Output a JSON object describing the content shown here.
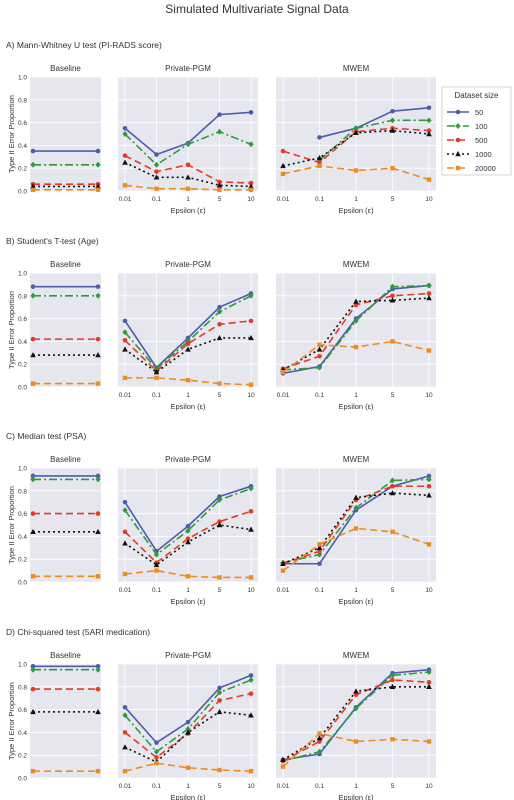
{
  "figure_title": "Simulated Multivariate Signal Data",
  "legend_title": "Dataset size",
  "colors": {
    "bg": "#e6e6ef",
    "grid": "#ffffff",
    "s50": "#4c5dab",
    "s100": "#2e9b3c",
    "s500": "#e53a24",
    "s1000": "#111111",
    "s20000": "#f08c1e"
  },
  "chart_data": {
    "type": "line",
    "shared_y_label": "Type II Error Proportion",
    "shared_x_label": "Epsilon (ε)",
    "ylim": [
      0.0,
      1.0
    ],
    "y_ticks": [
      "0.0",
      "0.2",
      "0.4",
      "0.6",
      "0.8",
      "1.0"
    ],
    "x_ticks": [
      "0.01",
      "0.1",
      "1",
      "5",
      "10"
    ],
    "panel_titles": [
      "Baseline",
      "Private-PGM",
      "MWEM"
    ],
    "series_names": [
      "50",
      "100",
      "500",
      "1000",
      "20000"
    ],
    "rows": [
      {
        "label": "A) Mann-Whitney U test  (PI-RADS score)",
        "baseline": [
          0.35,
          0.23,
          0.06,
          0.04,
          0.01
        ],
        "pgm": [
          [
            0.55,
            0.32,
            0.42,
            0.67,
            0.69
          ],
          [
            0.5,
            0.23,
            0.41,
            0.52,
            0.41
          ],
          [
            0.31,
            0.17,
            0.23,
            0.08,
            0.07
          ],
          [
            0.25,
            0.12,
            0.12,
            0.05,
            0.04
          ],
          [
            0.05,
            0.02,
            0.02,
            0.01,
            0.01
          ]
        ],
        "mwem": [
          [
            null,
            0.47,
            0.55,
            0.7,
            0.73
          ],
          [
            null,
            0.27,
            0.55,
            0.62,
            0.62
          ],
          [
            0.35,
            0.25,
            0.52,
            0.55,
            0.53
          ],
          [
            0.22,
            0.29,
            0.51,
            0.53,
            0.5
          ],
          [
            0.15,
            0.22,
            0.18,
            0.2,
            0.1
          ]
        ]
      },
      {
        "label": "B) Student's T-test  (Age)",
        "baseline": [
          0.88,
          0.8,
          0.42,
          0.28,
          0.03
        ],
        "pgm": [
          [
            0.58,
            0.17,
            0.43,
            0.7,
            0.82
          ],
          [
            0.48,
            0.16,
            0.4,
            0.66,
            0.8
          ],
          [
            0.41,
            0.14,
            0.38,
            0.55,
            0.58
          ],
          [
            0.33,
            0.13,
            0.33,
            0.43,
            0.43
          ],
          [
            0.08,
            0.08,
            0.06,
            0.03,
            0.02
          ]
        ],
        "mwem": [
          [
            0.12,
            0.18,
            0.6,
            0.86,
            0.89
          ],
          [
            0.15,
            0.17,
            0.58,
            0.88,
            0.89
          ],
          [
            0.16,
            0.27,
            0.72,
            0.8,
            0.82
          ],
          [
            0.15,
            0.33,
            0.75,
            0.76,
            0.78
          ],
          [
            0.13,
            0.37,
            0.35,
            0.4,
            0.32
          ]
        ]
      },
      {
        "label": "C) Median test (PSA)",
        "baseline": [
          0.93,
          0.9,
          0.6,
          0.44,
          0.05
        ],
        "pgm": [
          [
            0.7,
            0.27,
            0.49,
            0.75,
            0.84
          ],
          [
            0.63,
            0.24,
            0.45,
            0.72,
            0.82
          ],
          [
            0.44,
            0.17,
            0.38,
            0.53,
            0.62
          ],
          [
            0.34,
            0.15,
            0.35,
            0.5,
            0.46
          ],
          [
            0.07,
            0.1,
            0.05,
            0.04,
            0.04
          ]
        ],
        "mwem": [
          [
            0.16,
            0.16,
            0.63,
            0.84,
            0.93
          ],
          [
            0.17,
            0.24,
            0.65,
            0.89,
            0.9
          ],
          [
            0.16,
            0.27,
            0.72,
            0.84,
            0.84
          ],
          [
            0.16,
            0.3,
            0.74,
            0.78,
            0.76
          ],
          [
            0.1,
            0.33,
            0.47,
            0.44,
            0.33
          ]
        ]
      },
      {
        "label": "D) Chi-squared test (5ARI medication)",
        "baseline": [
          0.98,
          0.95,
          0.78,
          0.58,
          0.06
        ],
        "pgm": [
          [
            0.62,
            0.31,
            0.49,
            0.79,
            0.9
          ],
          [
            0.55,
            0.23,
            0.43,
            0.75,
            0.86
          ],
          [
            0.4,
            0.18,
            0.39,
            0.68,
            0.74
          ],
          [
            0.27,
            0.14,
            0.4,
            0.58,
            0.55
          ],
          [
            0.06,
            0.13,
            0.09,
            0.07,
            0.06
          ]
        ],
        "mwem": [
          [
            0.16,
            0.21,
            0.62,
            0.92,
            0.95
          ],
          [
            0.15,
            0.23,
            0.61,
            0.9,
            0.93
          ],
          [
            0.15,
            0.32,
            0.73,
            0.86,
            0.84
          ],
          [
            0.16,
            0.35,
            0.76,
            0.8,
            0.8
          ],
          [
            0.1,
            0.39,
            0.32,
            0.34,
            0.32
          ]
        ]
      }
    ]
  }
}
